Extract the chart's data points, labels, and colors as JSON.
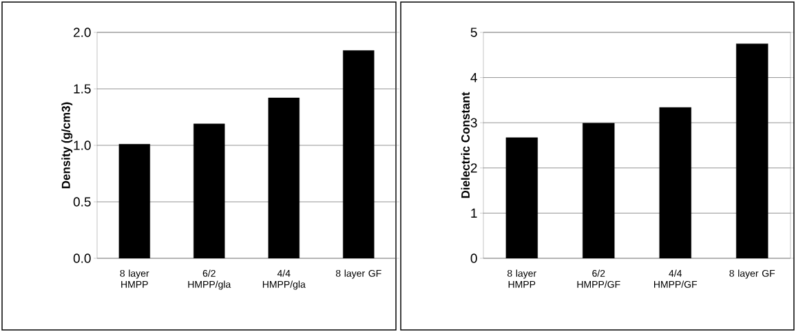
{
  "chart_data": [
    {
      "type": "bar",
      "ylabel": "Density (g/cm3)",
      "categories": [
        "8 layer HMPP",
        "6/2 HMPP/gla",
        "4/4 HMPP/gla",
        "8 layer GF"
      ],
      "values": [
        1.01,
        1.19,
        1.42,
        1.84
      ],
      "color": "#000000",
      "ylim": [
        0,
        2
      ],
      "yticks": [
        {
          "value": 0,
          "label": "0.0"
        },
        {
          "value": 0.5,
          "label": "0.5"
        },
        {
          "value": 1,
          "label": "1.0"
        },
        {
          "value": 1.5,
          "label": "1.5"
        },
        {
          "value": 2,
          "label": "2.0"
        }
      ],
      "grid": "y"
    },
    {
      "type": "bar",
      "ylabel": "Dielectric Constant",
      "categories": [
        "8 layer HMPP",
        "6/2 HMPP/GF",
        "4/4 HMPP/GF",
        "8 layer GF"
      ],
      "values": [
        2.67,
        2.99,
        3.34,
        4.75
      ],
      "color": "#000000",
      "ylim": [
        0,
        5
      ],
      "yticks": [
        0,
        1,
        2,
        3,
        4,
        5
      ],
      "grid": "y"
    }
  ]
}
